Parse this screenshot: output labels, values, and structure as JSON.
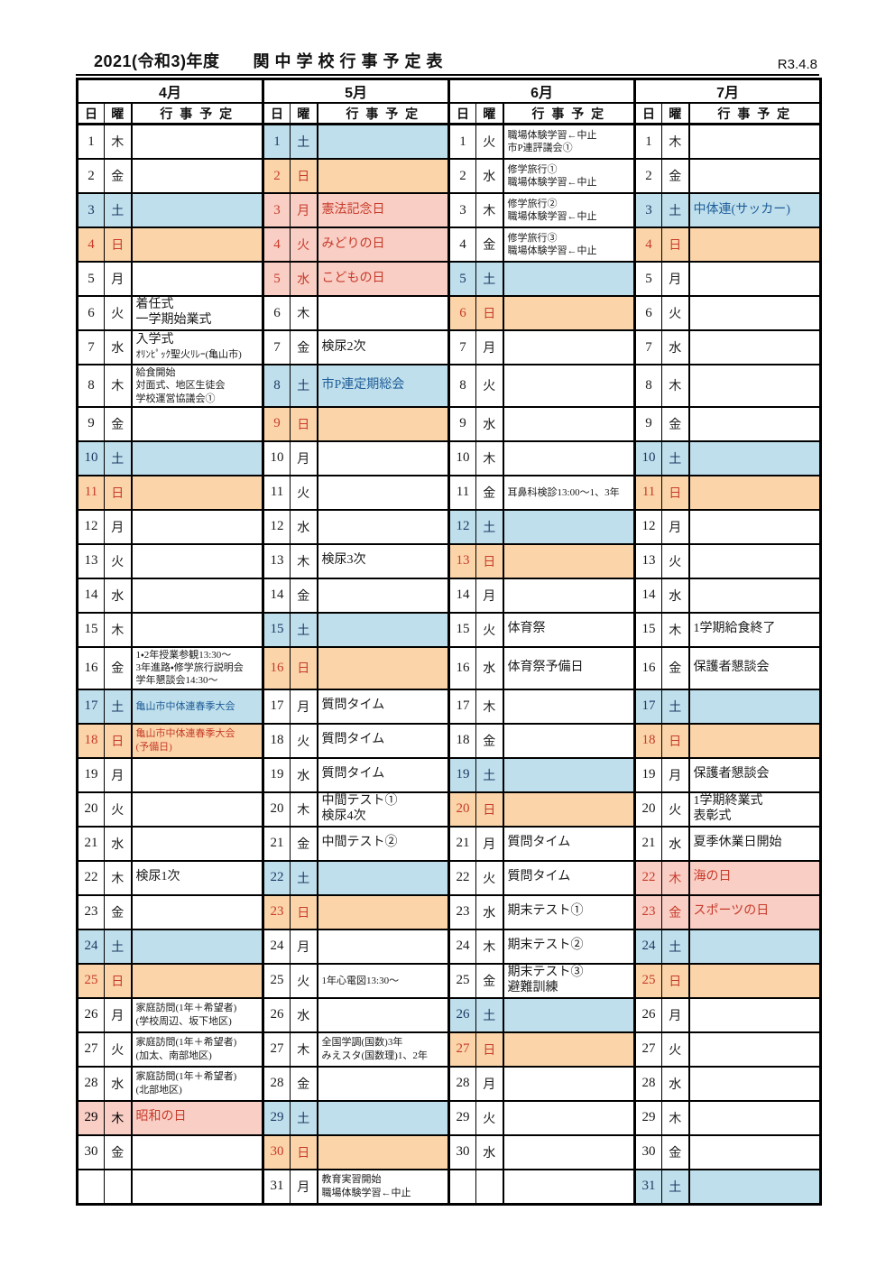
{
  "title": "2021(令和3)年度　　関 中 学 校 行 事 予 定 表",
  "revision": "R3.4.8",
  "columns": {
    "day": "日",
    "weekday": "曜",
    "events": "行 事 予 定"
  },
  "colors": {
    "saturday_bg": "#BEDFEB",
    "sunday_bg": "#FBD5A9",
    "holiday_bg": "#F9CEC5",
    "saturday_text": "#1F3864",
    "red_text": "#C73B2A",
    "blue_event_text": "#1F5C99"
  },
  "months": [
    {
      "name": "4月",
      "days": [
        {
          "d": "1",
          "w": "木",
          "t": "n",
          "ev": []
        },
        {
          "d": "2",
          "w": "金",
          "t": "n",
          "ev": []
        },
        {
          "d": "3",
          "w": "土",
          "t": "sa",
          "ev": []
        },
        {
          "d": "4",
          "w": "日",
          "t": "su",
          "ev": []
        },
        {
          "d": "5",
          "w": "月",
          "t": "n",
          "ev": []
        },
        {
          "d": "6",
          "w": "火",
          "t": "n",
          "ev": [
            {
              "t": "着任式"
            },
            {
              "t": "一学期始業式"
            }
          ]
        },
        {
          "d": "7",
          "w": "水",
          "t": "n",
          "ev": [
            {
              "t": "入学式"
            },
            {
              "t": "ｵﾘﾝﾋﾟｯｸ聖火ﾘﾚｰ(亀山市)",
              "s": 1
            }
          ]
        },
        {
          "d": "8",
          "w": "木",
          "t": "n",
          "ev": [
            {
              "t": "給食開始",
              "s": 1
            },
            {
              "t": "対面式、地区生徒会",
              "s": 1
            },
            {
              "t": "学校運営協議会①",
              "s": 1
            }
          ]
        },
        {
          "d": "9",
          "w": "金",
          "t": "n",
          "ev": []
        },
        {
          "d": "10",
          "w": "土",
          "t": "sa",
          "ev": []
        },
        {
          "d": "11",
          "w": "日",
          "t": "su",
          "ev": []
        },
        {
          "d": "12",
          "w": "月",
          "t": "n",
          "ev": []
        },
        {
          "d": "13",
          "w": "火",
          "t": "n",
          "ev": []
        },
        {
          "d": "14",
          "w": "水",
          "t": "n",
          "ev": []
        },
        {
          "d": "15",
          "w": "木",
          "t": "n",
          "ev": []
        },
        {
          "d": "16",
          "w": "金",
          "t": "n",
          "ev": [
            {
              "t": "1・2年授業参観13:30～",
              "s": 1
            },
            {
              "t": "3年進路・修学旅行説明会",
              "s": 1
            },
            {
              "t": "学年懇談会14:30～",
              "s": 1
            }
          ]
        },
        {
          "d": "17",
          "w": "土",
          "t": "sa",
          "c": "b",
          "ev": [
            {
              "t": "亀山市中体連春季大会",
              "s": 1
            }
          ]
        },
        {
          "d": "18",
          "w": "日",
          "t": "su",
          "c": "r",
          "ev": [
            {
              "t": "亀山市中体連春季大会",
              "s": 1
            },
            {
              "t": "(予備日)",
              "s": 1
            }
          ]
        },
        {
          "d": "19",
          "w": "月",
          "t": "n",
          "ev": []
        },
        {
          "d": "20",
          "w": "火",
          "t": "n",
          "ev": []
        },
        {
          "d": "21",
          "w": "水",
          "t": "n",
          "ev": []
        },
        {
          "d": "22",
          "w": "木",
          "t": "n",
          "ev": [
            {
              "t": "検尿1次"
            }
          ]
        },
        {
          "d": "23",
          "w": "金",
          "t": "n",
          "ev": []
        },
        {
          "d": "24",
          "w": "土",
          "t": "sa",
          "ev": []
        },
        {
          "d": "25",
          "w": "日",
          "t": "su",
          "ev": []
        },
        {
          "d": "26",
          "w": "月",
          "t": "n",
          "ev": [
            {
              "t": "家庭訪問(1年＋希望者)",
              "s": 1
            },
            {
              "t": "(学校周辺、坂下地区)",
              "s": 1
            }
          ]
        },
        {
          "d": "27",
          "w": "火",
          "t": "n",
          "ev": [
            {
              "t": "家庭訪問(1年＋希望者)",
              "s": 1
            },
            {
              "t": "(加太、南部地区)",
              "s": 1
            }
          ]
        },
        {
          "d": "28",
          "w": "水",
          "t": "n",
          "ev": [
            {
              "t": "家庭訪問(1年＋希望者)",
              "s": 1
            },
            {
              "t": "(北部地区)",
              "s": 1
            }
          ]
        },
        {
          "d": "29",
          "w": "木",
          "t": "h",
          "nc": "k",
          "c": "r",
          "ev": [
            {
              "t": "昭和の日"
            }
          ]
        },
        {
          "d": "30",
          "w": "金",
          "t": "n",
          "ev": []
        },
        {
          "d": "",
          "w": "",
          "t": "n",
          "ev": []
        }
      ]
    },
    {
      "name": "5月",
      "days": [
        {
          "d": "1",
          "w": "土",
          "t": "sa",
          "ev": []
        },
        {
          "d": "2",
          "w": "日",
          "t": "su",
          "ev": []
        },
        {
          "d": "3",
          "w": "月",
          "t": "h",
          "c": "r",
          "ev": [
            {
              "t": "憲法記念日"
            }
          ]
        },
        {
          "d": "4",
          "w": "火",
          "t": "h",
          "c": "r",
          "ev": [
            {
              "t": "みどりの日"
            }
          ]
        },
        {
          "d": "5",
          "w": "水",
          "t": "h",
          "c": "r",
          "ev": [
            {
              "t": "こどもの日"
            }
          ]
        },
        {
          "d": "6",
          "w": "木",
          "t": "n",
          "ev": []
        },
        {
          "d": "7",
          "w": "金",
          "t": "n",
          "ev": [
            {
              "t": "検尿2次"
            }
          ]
        },
        {
          "d": "8",
          "w": "土",
          "t": "sa",
          "c": "b",
          "ev": [
            {
              "t": "市P連定期総会"
            }
          ]
        },
        {
          "d": "9",
          "w": "日",
          "t": "su",
          "ev": []
        },
        {
          "d": "10",
          "w": "月",
          "t": "n",
          "ev": []
        },
        {
          "d": "11",
          "w": "火",
          "t": "n",
          "ev": []
        },
        {
          "d": "12",
          "w": "水",
          "t": "n",
          "ev": []
        },
        {
          "d": "13",
          "w": "木",
          "t": "n",
          "ev": [
            {
              "t": "検尿3次"
            }
          ]
        },
        {
          "d": "14",
          "w": "金",
          "t": "n",
          "ev": []
        },
        {
          "d": "15",
          "w": "土",
          "t": "sa",
          "ev": []
        },
        {
          "d": "16",
          "w": "日",
          "t": "su",
          "ev": []
        },
        {
          "d": "17",
          "w": "月",
          "t": "n",
          "ev": [
            {
              "t": "質問タイム"
            }
          ]
        },
        {
          "d": "18",
          "w": "火",
          "t": "n",
          "ev": [
            {
              "t": "質問タイム"
            }
          ]
        },
        {
          "d": "19",
          "w": "水",
          "t": "n",
          "ev": [
            {
              "t": "質問タイム"
            }
          ]
        },
        {
          "d": "20",
          "w": "木",
          "t": "n",
          "ev": [
            {
              "t": "中間テスト①"
            },
            {
              "t": "検尿4次"
            }
          ]
        },
        {
          "d": "21",
          "w": "金",
          "t": "n",
          "ev": [
            {
              "t": "中間テスト②"
            }
          ]
        },
        {
          "d": "22",
          "w": "土",
          "t": "sa",
          "ev": []
        },
        {
          "d": "23",
          "w": "日",
          "t": "su",
          "ev": []
        },
        {
          "d": "24",
          "w": "月",
          "t": "n",
          "ev": []
        },
        {
          "d": "25",
          "w": "火",
          "t": "n",
          "ev": [
            {
              "t": "1年心電図13:30～",
              "s": 1
            }
          ]
        },
        {
          "d": "26",
          "w": "水",
          "t": "n",
          "ev": []
        },
        {
          "d": "27",
          "w": "木",
          "t": "n",
          "ev": [
            {
              "t": "全国学調(国数)3年",
              "s": 1
            },
            {
              "t": "みえスタ(国数理)1、2年",
              "s": 1
            }
          ]
        },
        {
          "d": "28",
          "w": "金",
          "t": "n",
          "ev": []
        },
        {
          "d": "29",
          "w": "土",
          "t": "sa",
          "ev": []
        },
        {
          "d": "30",
          "w": "日",
          "t": "su",
          "ev": []
        },
        {
          "d": "31",
          "w": "月",
          "t": "n",
          "ev": [
            {
              "t": "教育実習開始",
              "s": 1
            },
            {
              "t": "職場体験学習←中止",
              "s": 1
            }
          ]
        }
      ]
    },
    {
      "name": "6月",
      "days": [
        {
          "d": "1",
          "w": "火",
          "t": "n",
          "ev": [
            {
              "t": "職場体験学習←中止",
              "s": 1
            },
            {
              "t": "市P連評議会①",
              "s": 1
            }
          ]
        },
        {
          "d": "2",
          "w": "水",
          "t": "n",
          "ev": [
            {
              "t": "修学旅行①",
              "s": 1
            },
            {
              "t": "職場体験学習←中止",
              "s": 1
            }
          ]
        },
        {
          "d": "3",
          "w": "木",
          "t": "n",
          "ev": [
            {
              "t": "修学旅行②",
              "s": 1
            },
            {
              "t": "職場体験学習←中止",
              "s": 1
            }
          ]
        },
        {
          "d": "4",
          "w": "金",
          "t": "n",
          "ev": [
            {
              "t": "修学旅行③",
              "s": 1
            },
            {
              "t": "職場体験学習←中止",
              "s": 1
            }
          ]
        },
        {
          "d": "5",
          "w": "土",
          "t": "sa",
          "ev": []
        },
        {
          "d": "6",
          "w": "日",
          "t": "su",
          "ev": []
        },
        {
          "d": "7",
          "w": "月",
          "t": "n",
          "ev": []
        },
        {
          "d": "8",
          "w": "火",
          "t": "n",
          "ev": []
        },
        {
          "d": "9",
          "w": "水",
          "t": "n",
          "ev": []
        },
        {
          "d": "10",
          "w": "木",
          "t": "n",
          "ev": []
        },
        {
          "d": "11",
          "w": "金",
          "t": "n",
          "ev": [
            {
              "t": "耳鼻科検診13:00～1、3年",
              "s": 1
            }
          ]
        },
        {
          "d": "12",
          "w": "土",
          "t": "sa",
          "ev": []
        },
        {
          "d": "13",
          "w": "日",
          "t": "su",
          "ev": []
        },
        {
          "d": "14",
          "w": "月",
          "t": "n",
          "ev": []
        },
        {
          "d": "15",
          "w": "火",
          "t": "n",
          "ev": [
            {
              "t": "体育祭"
            }
          ]
        },
        {
          "d": "16",
          "w": "水",
          "t": "n",
          "ev": [
            {
              "t": "体育祭予備日"
            }
          ]
        },
        {
          "d": "17",
          "w": "木",
          "t": "n",
          "ev": []
        },
        {
          "d": "18",
          "w": "金",
          "t": "n",
          "ev": []
        },
        {
          "d": "19",
          "w": "土",
          "t": "sa",
          "ev": []
        },
        {
          "d": "20",
          "w": "日",
          "t": "su",
          "ev": []
        },
        {
          "d": "21",
          "w": "月",
          "t": "n",
          "ev": [
            {
              "t": "質問タイム"
            }
          ]
        },
        {
          "d": "22",
          "w": "火",
          "t": "n",
          "ev": [
            {
              "t": "質問タイム"
            }
          ]
        },
        {
          "d": "23",
          "w": "水",
          "t": "n",
          "ev": [
            {
              "t": "期末テスト①"
            }
          ]
        },
        {
          "d": "24",
          "w": "木",
          "t": "n",
          "ev": [
            {
              "t": "期末テスト②"
            }
          ]
        },
        {
          "d": "25",
          "w": "金",
          "t": "n",
          "ev": [
            {
              "t": "期末テスト③"
            },
            {
              "t": "避難訓練"
            }
          ]
        },
        {
          "d": "26",
          "w": "土",
          "t": "sa",
          "ev": []
        },
        {
          "d": "27",
          "w": "日",
          "t": "su",
          "ev": []
        },
        {
          "d": "28",
          "w": "月",
          "t": "n",
          "ev": []
        },
        {
          "d": "29",
          "w": "火",
          "t": "n",
          "ev": []
        },
        {
          "d": "30",
          "w": "水",
          "t": "n",
          "ev": []
        },
        {
          "d": "",
          "w": "",
          "t": "n",
          "ev": []
        }
      ]
    },
    {
      "name": "7月",
      "days": [
        {
          "d": "1",
          "w": "木",
          "t": "n",
          "ev": []
        },
        {
          "d": "2",
          "w": "金",
          "t": "n",
          "ev": []
        },
        {
          "d": "3",
          "w": "土",
          "t": "sa",
          "c": "b",
          "ev": [
            {
              "t": "中体連(サッカー)"
            }
          ]
        },
        {
          "d": "4",
          "w": "日",
          "t": "su",
          "ev": []
        },
        {
          "d": "5",
          "w": "月",
          "t": "n",
          "ev": []
        },
        {
          "d": "6",
          "w": "火",
          "t": "n",
          "ev": []
        },
        {
          "d": "7",
          "w": "水",
          "t": "n",
          "ev": []
        },
        {
          "d": "8",
          "w": "木",
          "t": "n",
          "ev": []
        },
        {
          "d": "9",
          "w": "金",
          "t": "n",
          "ev": []
        },
        {
          "d": "10",
          "w": "土",
          "t": "sa",
          "ev": []
        },
        {
          "d": "11",
          "w": "日",
          "t": "su",
          "ev": []
        },
        {
          "d": "12",
          "w": "月",
          "t": "n",
          "ev": []
        },
        {
          "d": "13",
          "w": "火",
          "t": "n",
          "ev": []
        },
        {
          "d": "14",
          "w": "水",
          "t": "n",
          "ev": []
        },
        {
          "d": "15",
          "w": "木",
          "t": "n",
          "ev": [
            {
              "t": "1学期給食終了"
            }
          ]
        },
        {
          "d": "16",
          "w": "金",
          "t": "n",
          "ev": [
            {
              "t": "保護者懇談会"
            }
          ]
        },
        {
          "d": "17",
          "w": "土",
          "t": "sa",
          "ev": []
        },
        {
          "d": "18",
          "w": "日",
          "t": "su",
          "ev": []
        },
        {
          "d": "19",
          "w": "月",
          "t": "n",
          "ev": [
            {
              "t": "保護者懇談会"
            }
          ]
        },
        {
          "d": "20",
          "w": "火",
          "t": "n",
          "ev": [
            {
              "t": "1学期終業式"
            },
            {
              "t": "表彰式"
            }
          ]
        },
        {
          "d": "21",
          "w": "水",
          "t": "n",
          "ev": [
            {
              "t": "夏季休業日開始"
            }
          ]
        },
        {
          "d": "22",
          "w": "木",
          "t": "h",
          "c": "r",
          "ev": [
            {
              "t": "海の日"
            }
          ]
        },
        {
          "d": "23",
          "w": "金",
          "t": "h",
          "c": "r",
          "ev": [
            {
              "t": "スポーツの日"
            }
          ]
        },
        {
          "d": "24",
          "w": "土",
          "t": "sa",
          "ev": []
        },
        {
          "d": "25",
          "w": "日",
          "t": "su",
          "ev": []
        },
        {
          "d": "26",
          "w": "月",
          "t": "n",
          "ev": []
        },
        {
          "d": "27",
          "w": "火",
          "t": "n",
          "ev": []
        },
        {
          "d": "28",
          "w": "水",
          "t": "n",
          "ev": []
        },
        {
          "d": "29",
          "w": "木",
          "t": "n",
          "ev": []
        },
        {
          "d": "30",
          "w": "金",
          "t": "n",
          "ev": []
        },
        {
          "d": "31",
          "w": "土",
          "t": "sa",
          "ev": []
        }
      ]
    }
  ]
}
